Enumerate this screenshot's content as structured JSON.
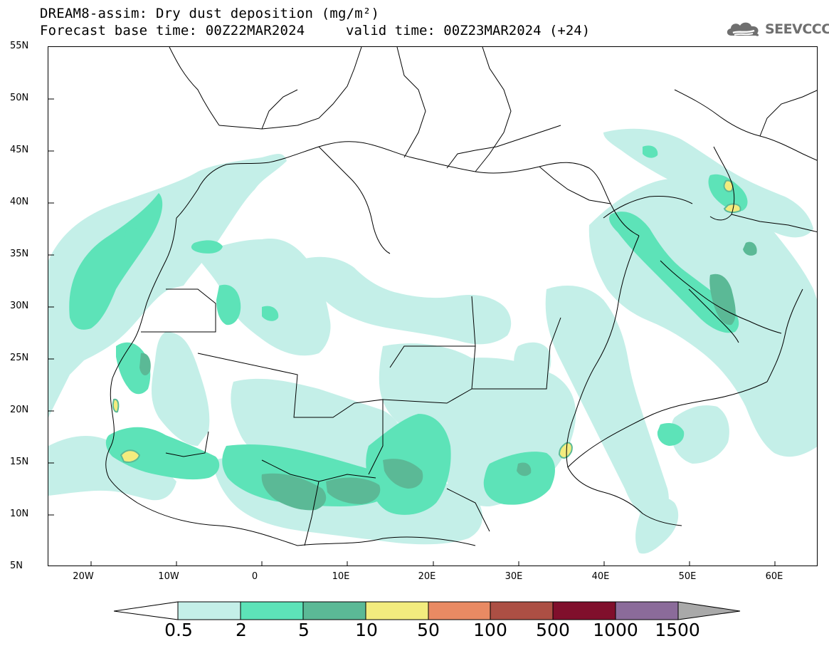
{
  "title": {
    "line1": "DREAM8-assim: Dry dust deposition (mg/m²)",
    "line2": "Forecast base time: 00Z22MAR2024",
    "valid": "valid time: 00Z23MAR2024 (+24)"
  },
  "logo": {
    "text": "SEEVCCC",
    "icon": "cloud-icon"
  },
  "map": {
    "lat_ticks": [
      "55N",
      "50N",
      "45N",
      "40N",
      "35N",
      "30N",
      "25N",
      "20N",
      "15N",
      "10N",
      "5N"
    ],
    "lon_ticks": [
      "20W",
      "10W",
      "0",
      "10E",
      "20E",
      "30E",
      "40E",
      "50E",
      "60E"
    ],
    "lon_range": [
      -25,
      65
    ],
    "lat_range": [
      5,
      55
    ]
  },
  "colorbar": {
    "labels": [
      "0.5",
      "2",
      "5",
      "10",
      "50",
      "100",
      "500",
      "1000",
      "1500"
    ],
    "colors": [
      "#c4efe8",
      "#5de3b8",
      "#5bb996",
      "#f3ec7e",
      "#e98a63",
      "#ac4f44",
      "#800f2c",
      "#8b6b9a",
      "#a9a9a9"
    ]
  }
}
